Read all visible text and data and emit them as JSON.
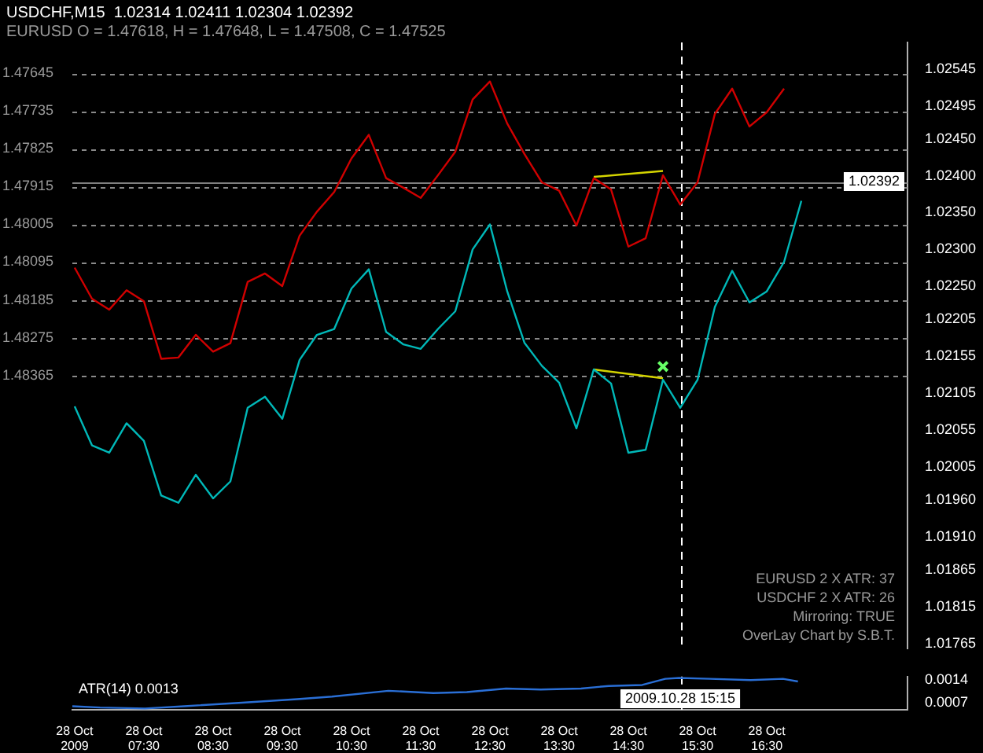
{
  "chart_data": [
    {
      "type": "line",
      "title": "USDCHF,M15  1.02314 1.02411 1.02304 1.02392",
      "subtitle": "EURUSD O = 1.47618, H = 1.47648, L = 1.47508, C = 1.47525",
      "x": [
        "2009-10-28T06:30",
        "2009-10-28T06:45",
        "2009-10-28T07:00",
        "2009-10-28T07:15",
        "2009-10-28T07:30",
        "2009-10-28T07:45",
        "2009-10-28T08:00",
        "2009-10-28T08:15",
        "2009-10-28T08:30",
        "2009-10-28T08:45",
        "2009-10-28T09:00",
        "2009-10-28T09:15",
        "2009-10-28T09:30",
        "2009-10-28T09:45",
        "2009-10-28T10:00",
        "2009-10-28T10:15",
        "2009-10-28T10:30",
        "2009-10-28T10:45",
        "2009-10-28T11:00",
        "2009-10-28T11:15",
        "2009-10-28T11:30",
        "2009-10-28T11:45",
        "2009-10-28T12:00",
        "2009-10-28T12:15",
        "2009-10-28T12:30",
        "2009-10-28T12:45",
        "2009-10-28T13:00",
        "2009-10-28T13:15",
        "2009-10-28T13:30",
        "2009-10-28T13:45",
        "2009-10-28T14:00",
        "2009-10-28T14:15",
        "2009-10-28T14:30",
        "2009-10-28T14:45",
        "2009-10-28T15:00",
        "2009-10-28T15:15",
        "2009-10-28T15:30",
        "2009-10-28T15:45",
        "2009-10-28T16:00",
        "2009-10-28T16:15",
        "2009-10-28T16:30",
        "2009-10-28T16:45",
        "2009-10-28T17:00"
      ],
      "xlim": [
        "2009-10-28T06:28",
        "2009-10-28T18:32"
      ],
      "tick_labels": "y",
      "ylim": [
        1.01758,
        1.02581
      ],
      "yticks": [
        1.02545,
        1.02495,
        {
          "value": 1.0245,
          "label": "1.02450"
        },
        {
          "value": 1.024,
          "label": "1.02400"
        },
        {
          "value": 1.0235,
          "label": "1.02350"
        },
        {
          "value": 1.023,
          "label": "1.02300"
        },
        {
          "value": 1.0225,
          "label": "1.02250"
        },
        1.02205,
        1.02155,
        1.02105,
        1.02055,
        1.02005,
        {
          "value": 1.0196,
          "label": "1.01960"
        },
        {
          "value": 1.0191,
          "label": "1.01910"
        },
        1.01865,
        1.01815,
        1.01765
      ],
      "y2lim": [
        1.49015,
        1.47572
      ],
      "y2ticks": [
        1.47645,
        1.47735,
        1.47825,
        1.47915,
        1.48005,
        1.48095,
        1.48185,
        1.48275,
        1.48365
      ],
      "grid": "y",
      "marker": "none",
      "line_style": "solid",
      "series": [
        {
          "color": "#00b8b8",
          "values": [
            1.02087,
            1.02034,
            1.02024,
            1.02064,
            1.0204,
            1.01966,
            1.01956,
            1.01994,
            1.01962,
            1.01985,
            1.02085,
            1.021,
            1.0207,
            1.0215,
            1.02184,
            1.02192,
            1.02247,
            1.02273,
            1.02188,
            1.02171,
            1.02165,
            1.02192,
            1.02216,
            1.023,
            1.02334,
            1.02243,
            1.02173,
            1.02142,
            1.02119,
            1.02057,
            1.02137,
            1.02118,
            1.02024,
            1.02028,
            1.02123,
            1.02085,
            1.02123,
            1.02222,
            1.02271,
            1.02228,
            1.02243,
            1.02283,
            1.02366
          ]
        },
        {
          "color": "#d00000",
          "axis": "y2",
          "values": [
            1.48108,
            1.48182,
            1.48208,
            1.48162,
            1.48188,
            1.48325,
            1.48322,
            1.48268,
            1.48308,
            1.48288,
            1.48142,
            1.48122,
            1.48152,
            1.48032,
            1.47975,
            1.47928,
            1.47848,
            1.47792,
            1.47895,
            1.47918,
            1.47942,
            1.47888,
            1.47832,
            1.47708,
            1.47665,
            1.47765,
            1.47838,
            1.47905,
            1.47925,
            1.48008,
            1.47895,
            1.47922,
            1.48058,
            1.48038,
            1.47888,
            1.47958,
            1.47905,
            1.47742,
            1.47682,
            1.47772,
            1.47738,
            1.47682,
            null
          ]
        },
        {
          "type": "line",
          "axis": "y2",
          "color": "#d4d400",
          "x": [
            "2009-10-28T14:00",
            "2009-10-28T15:00"
          ],
          "values": [
            1.47892,
            1.47878
          ]
        },
        {
          "type": "line",
          "color": "#d4d400",
          "x": [
            "2009-10-28T14:00",
            "2009-10-28T15:00"
          ],
          "values": [
            1.02137,
            1.02125
          ]
        },
        {
          "type": "scatter",
          "color": "#66ff66",
          "marker": "cross",
          "x": [
            "2009-10-28T15:00"
          ],
          "values": [
            1.02141
          ]
        }
      ],
      "ref_lines": [
        {
          "axis": "y",
          "value": 1.02392,
          "label": "1.02392",
          "color": "#808080",
          "line_style": "solid"
        },
        {
          "axis": "x",
          "value": "2009-10-28T15:15",
          "color": "#ffffff",
          "line_style": "dashed"
        }
      ],
      "annotations": [
        "EURUSD 2 X ATR: 37",
        "USDCHF 2 X ATR: 26",
        "Mirroring: TRUE",
        "OverLay Chart by S.B.T."
      ]
    },
    {
      "type": "line",
      "title": "ATR(14) 0.0013",
      "color": "#2a6fd6",
      "marker": "none",
      "line_style": "solid",
      "x": [
        "2009-10-28T06:28",
        "2009-10-28T06:52",
        "2009-10-28T07:31",
        "2009-10-28T08:05",
        "2009-10-28T08:55",
        "2009-10-28T09:43",
        "2009-10-28T10:13",
        "2009-10-28T11:02",
        "2009-10-28T11:41",
        "2009-10-28T12:10",
        "2009-10-28T12:44",
        "2009-10-28T13:14",
        "2009-10-28T13:49",
        "2009-10-28T14:13",
        "2009-10-28T14:42",
        "2009-10-28T15:02",
        "2009-10-28T15:14",
        "2009-10-28T15:41",
        "2009-10-28T16:16",
        "2009-10-28T16:44",
        "2009-10-28T16:57"
      ],
      "values": [
        0.00059,
        0.00055,
        0.00052,
        0.00059,
        0.0007,
        0.00081,
        0.00089,
        0.00107,
        0.001,
        0.00103,
        0.00114,
        0.00111,
        0.00114,
        0.00122,
        0.00125,
        0.00144,
        0.00147,
        0.00144,
        0.0014,
        0.00144,
        0.00136
      ],
      "xlim": [
        "2009-10-28T06:28",
        "2009-10-28T18:32"
      ],
      "xticks": [
        {
          "value": "2009-10-28T06:30",
          "label": "28 Oct 2009"
        },
        {
          "value": "2009-10-28T07:30",
          "label": "28 Oct 07:30"
        },
        {
          "value": "2009-10-28T08:30",
          "label": "28 Oct 08:30"
        },
        {
          "value": "2009-10-28T09:30",
          "label": "28 Oct 09:30"
        },
        {
          "value": "2009-10-28T10:30",
          "label": "28 Oct 10:30"
        },
        {
          "value": "2009-10-28T11:30",
          "label": "28 Oct 11:30"
        },
        {
          "value": "2009-10-28T12:30",
          "label": "28 Oct 12:30"
        },
        {
          "value": "2009-10-28T13:30",
          "label": "28 Oct 13:30"
        },
        {
          "value": "2009-10-28T14:30",
          "label": "28 Oct 14:30"
        },
        {
          "value": "2009-10-28T15:30",
          "label": "28 Oct 15:30"
        },
        {
          "value": "2009-10-28T16:30",
          "label": "28 Oct 16:30"
        }
      ],
      "ylim": [
        0.00048,
        0.00151
      ],
      "yticks": [
        0.0014,
        0.0007
      ],
      "ref_lines": [
        {
          "axis": "x",
          "value": "2009-10-28T15:15",
          "label": "2009.10.28 15:15",
          "color": "#ffffff",
          "line_style": "dashed"
        }
      ]
    }
  ]
}
